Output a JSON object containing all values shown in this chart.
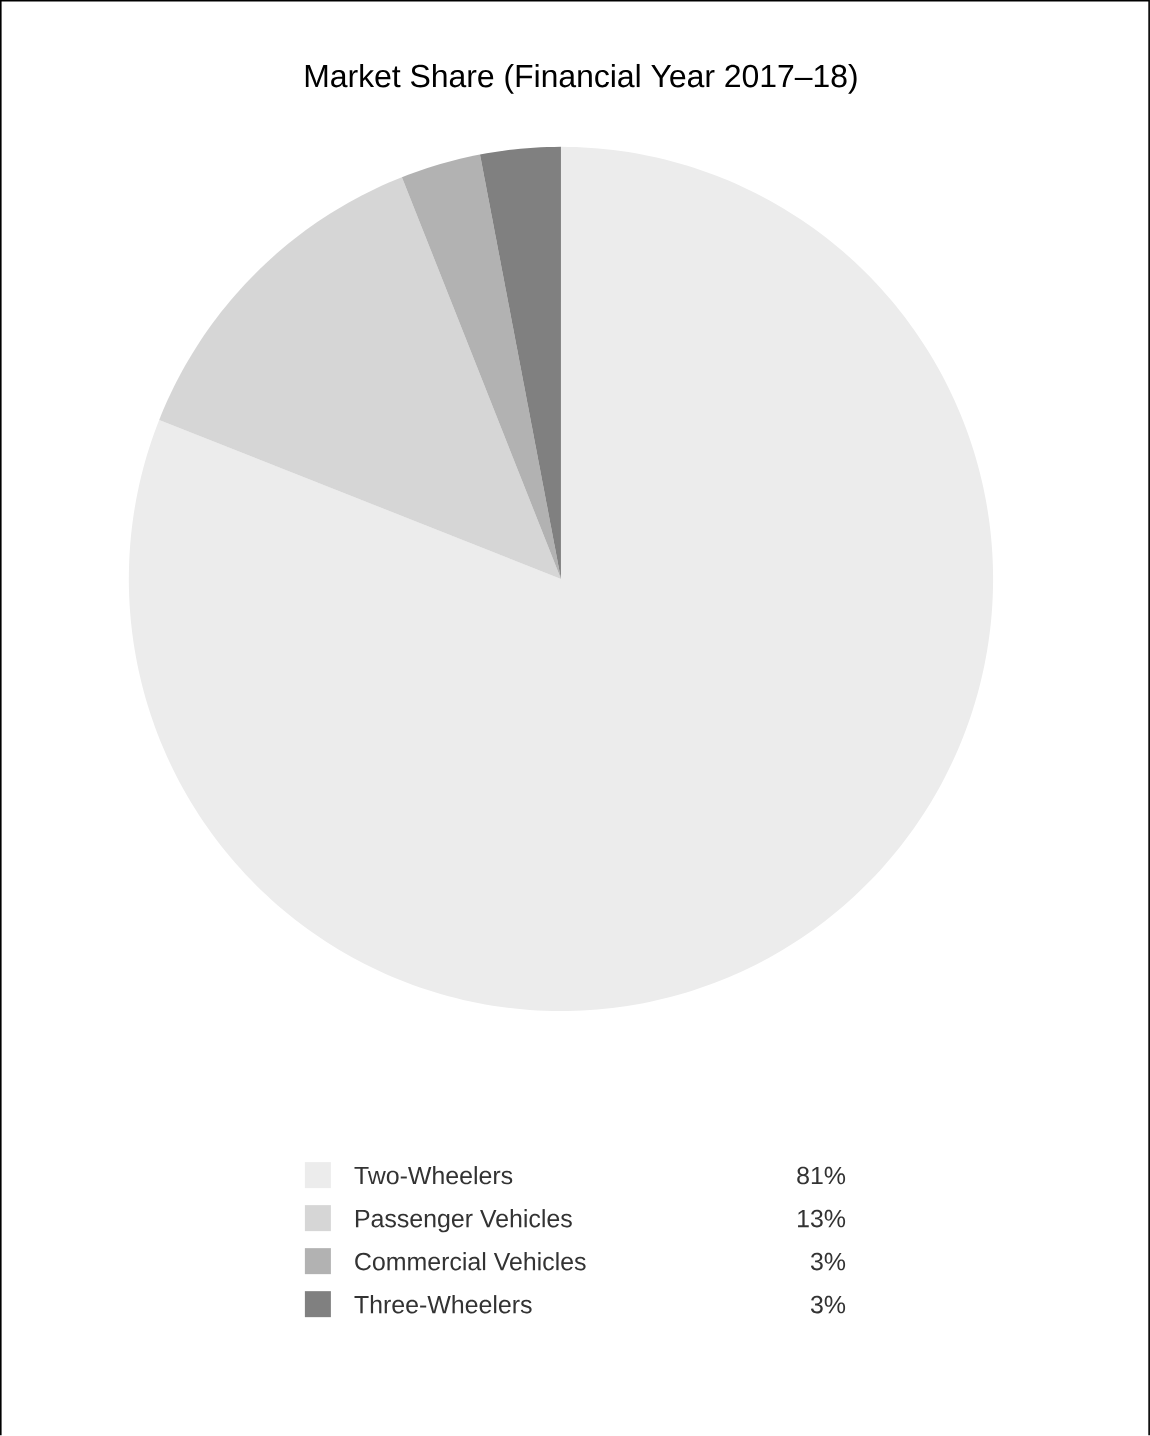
{
  "chart_data": {
    "type": "pie",
    "title": "Market Share (Financial Year 2017–18)",
    "categories": [
      "Two-Wheelers",
      "Passenger Vehicles",
      "Commercial Vehicles",
      "Three-Wheelers"
    ],
    "values": [
      81,
      13,
      3,
      3
    ],
    "value_labels": [
      "81%",
      "13%",
      "3%",
      "3%"
    ],
    "colors": [
      "#ececec",
      "#d6d6d6",
      "#b2b2b2",
      "#808080"
    ],
    "legend": "bottom"
  }
}
